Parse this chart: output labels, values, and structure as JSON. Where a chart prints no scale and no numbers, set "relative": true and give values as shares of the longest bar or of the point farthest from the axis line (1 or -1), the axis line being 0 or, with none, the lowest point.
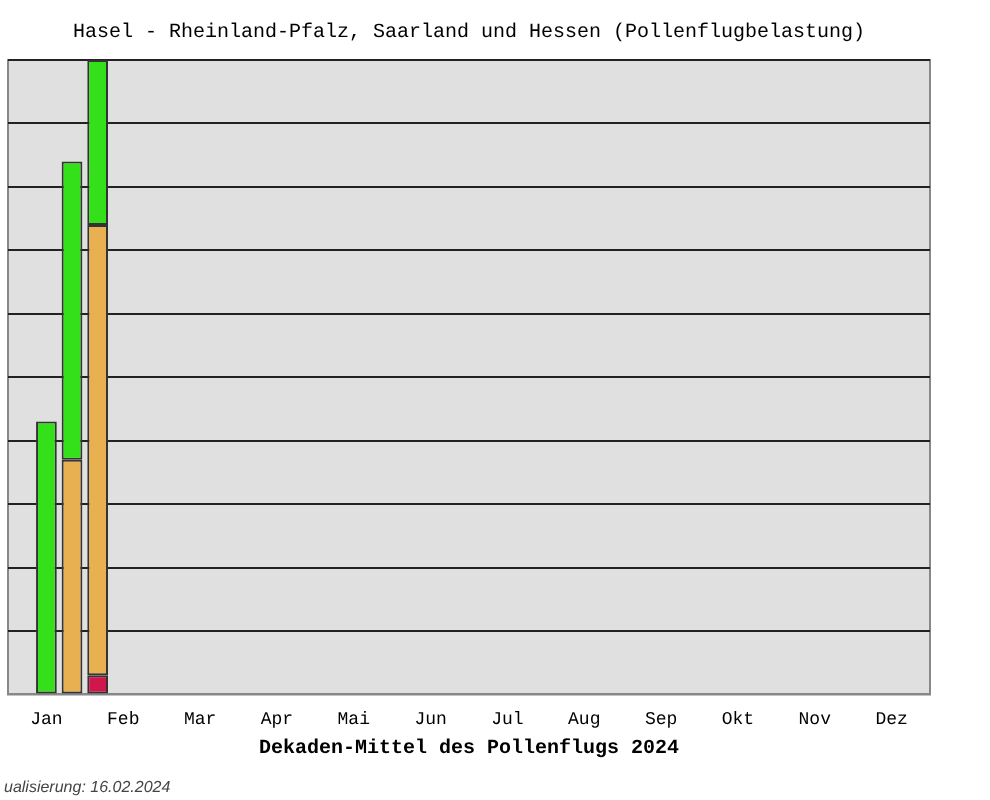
{
  "chart_data": {
    "type": "bar",
    "title": "Hasel - Rheinland-Pfalz, Saarland und Hessen (Pollenflugbelastung)",
    "xlabel": "Dekaden-Mittel des Pollenflugs 2024",
    "annotations": [
      "ualisierung: 16.02.2024"
    ],
    "categories": [
      null,
      "Jan",
      null,
      null,
      "Feb",
      null,
      null,
      "Mar",
      null,
      null,
      "Apr",
      null,
      null,
      "Mai",
      null,
      null,
      "Jun",
      null,
      null,
      "Jul",
      null,
      null,
      "Aug",
      null,
      null,
      "Sep",
      null,
      null,
      "Okt",
      null,
      null,
      "Nov",
      null,
      null,
      "Dez",
      null
    ],
    "relative": true,
    "stacked": true,
    "grid": "y",
    "legend": false,
    "series": [
      {
        "color": "#d0164a",
        "values": [
          null,
          0,
          0,
          0.03,
          0,
          0,
          0,
          0,
          0,
          0,
          0,
          0,
          0,
          0,
          0,
          0,
          0,
          0,
          0,
          0,
          0,
          0,
          0,
          0,
          0,
          0,
          0,
          0,
          0,
          0,
          0,
          0,
          0,
          0,
          0,
          0
        ]
      },
      {
        "color": "#e8b050",
        "values": [
          null,
          0,
          0.37,
          0.71,
          0,
          0,
          0,
          0,
          0,
          0,
          0,
          0,
          0,
          0,
          0,
          0,
          0,
          0,
          0,
          0,
          0,
          0,
          0,
          0,
          0,
          0,
          0,
          0,
          0,
          0,
          0,
          0,
          0,
          0,
          0,
          0
        ]
      },
      {
        "color": "#33e01a",
        "values": [
          null,
          0.43,
          0.47,
          0.26,
          0,
          0,
          0,
          0,
          0,
          0,
          0,
          0,
          0,
          0,
          0,
          0,
          0,
          0,
          0,
          0,
          0,
          0,
          0,
          0,
          0,
          0,
          0,
          0,
          0,
          0,
          0,
          0,
          0,
          0,
          0,
          0
        ]
      }
    ]
  }
}
